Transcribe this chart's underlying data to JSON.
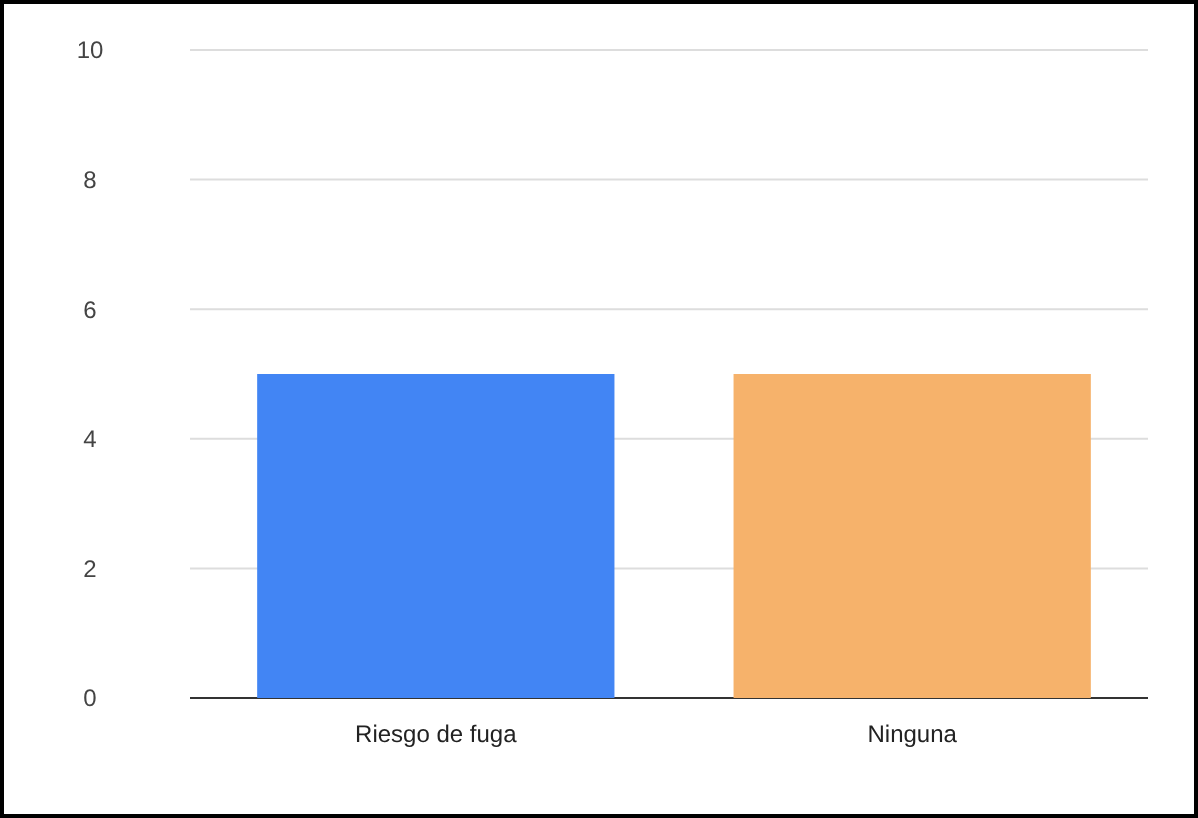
{
  "chart_data": {
    "type": "bar",
    "categories": [
      "Riesgo de fuga",
      "Ninguna"
    ],
    "values": [
      5,
      5
    ],
    "colors": [
      "#4285f4",
      "#f6b26b"
    ],
    "ylim": [
      0,
      10
    ],
    "yticks": [
      0,
      2,
      4,
      6,
      8,
      10
    ],
    "grid": "y"
  }
}
